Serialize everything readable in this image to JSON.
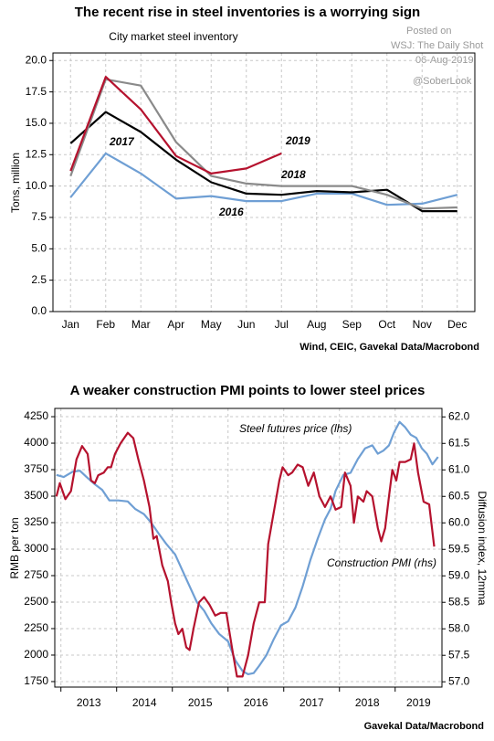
{
  "chart_data": [
    {
      "type": "line",
      "title": "The recent rise in steel inventories is a worrying sign",
      "subtitle": "City market steel inventory",
      "ylabel": "Tons, million",
      "source": "Wind, CEIC, Gavekal Data/Macrobond",
      "categories": [
        "Jan",
        "Feb",
        "Mar",
        "Apr",
        "May",
        "Jun",
        "Jul",
        "Aug",
        "Sep",
        "Oct",
        "Nov",
        "Dec"
      ],
      "ylim": [
        0,
        20.6
      ],
      "yticks": [
        {
          "value": 0,
          "label": "0.0"
        },
        2.5,
        {
          "value": 5,
          "label": "5.0"
        },
        7.5,
        {
          "value": 10,
          "label": "10.0"
        },
        12.5,
        {
          "value": 15,
          "label": "15.0"
        },
        17.5,
        {
          "value": 20,
          "label": "20.0"
        }
      ],
      "grid": true,
      "series": [
        {
          "name": "2016",
          "color": "#6f9fd4",
          "values": [
            9.1,
            12.6,
            11.0,
            9.0,
            9.2,
            8.8,
            8.8,
            9.4,
            9.4,
            8.5,
            8.6,
            9.3
          ]
        },
        {
          "name": "2017",
          "color": "#000000",
          "values": [
            13.4,
            15.9,
            14.3,
            12.1,
            10.3,
            9.4,
            9.3,
            9.6,
            9.5,
            9.7,
            8.0,
            8.0
          ]
        },
        {
          "name": "2018",
          "color": "#8a8a8a",
          "values": [
            10.8,
            18.5,
            18.0,
            13.5,
            10.8,
            10.2,
            10.0,
            10.0,
            10.0,
            9.3,
            8.2,
            8.3
          ]
        },
        {
          "name": "2019",
          "color": "#b5122e",
          "values": [
            11.2,
            18.7,
            16.1,
            12.4,
            11.0,
            11.4,
            12.6,
            null,
            null,
            null,
            null,
            null
          ]
        }
      ]
    },
    {
      "type": "line",
      "title": "A weaker construction PMI points to lower steel prices",
      "ylabel": "RMB per ton",
      "y2label": "Diffusion index, 12mma",
      "source": "Gavekal Data/Macrobond",
      "xlim": [
        2012.89,
        2019.84
      ],
      "xticks": [
        2013,
        2014,
        2015,
        2016,
        2017,
        2018,
        2019
      ],
      "ylim": [
        1698,
        4328
      ],
      "yticks": [
        1750,
        2000,
        2250,
        2500,
        2750,
        3000,
        3250,
        3500,
        3750,
        4000,
        4250
      ],
      "y2lim": [
        56.9,
        62.16
      ],
      "y2ticks": [
        {
          "value": 57,
          "label": "57.0"
        },
        57.5,
        {
          "value": 58,
          "label": "58.0"
        },
        58.5,
        {
          "value": 59,
          "label": "59.0"
        },
        59.5,
        {
          "value": 60,
          "label": "60.0"
        },
        60.5,
        {
          "value": 61,
          "label": "61.0"
        },
        61.5,
        {
          "value": 62,
          "label": "62.0"
        }
      ],
      "grid": true,
      "series": [
        {
          "name": "Steel futures price (lhs)",
          "color": "#6f9fd4",
          "x": [
            2012.92,
            2013.05,
            2013.21,
            2013.34,
            2013.46,
            2013.59,
            2013.74,
            2013.87,
            2014.03,
            2014.2,
            2014.33,
            2014.49,
            2014.62,
            2014.75,
            2014.89,
            2015.05,
            2015.18,
            2015.31,
            2015.44,
            2015.57,
            2015.7,
            2015.84,
            2016.0,
            2016.13,
            2016.26,
            2016.36,
            2016.46,
            2016.56,
            2016.69,
            2016.82,
            2016.95,
            2017.08,
            2017.21,
            2017.34,
            2017.48,
            2017.61,
            2017.74,
            2017.84,
            2017.93,
            2018.07,
            2018.2,
            2018.33,
            2018.46,
            2018.59,
            2018.69,
            2018.79,
            2018.89,
            2018.98,
            2019.08,
            2019.18,
            2019.28,
            2019.38,
            2019.48,
            2019.57,
            2019.67,
            2019.77
          ],
          "values": [
            3700,
            3680,
            3730,
            3740,
            3680,
            3620,
            3560,
            3460,
            3460,
            3450,
            3380,
            3330,
            3250,
            3150,
            3050,
            2950,
            2800,
            2650,
            2500,
            2420,
            2300,
            2200,
            2130,
            1950,
            1850,
            1820,
            1830,
            1900,
            2000,
            2150,
            2280,
            2320,
            2450,
            2650,
            2900,
            3100,
            3280,
            3380,
            3550,
            3700,
            3720,
            3850,
            3950,
            3980,
            3900,
            3930,
            3980,
            4100,
            4200,
            4150,
            4080,
            4050,
            3950,
            3900,
            3800,
            3870
          ]
        },
        {
          "name": "Construction PMI (rhs)",
          "color": "#b5122e",
          "axis": "y2",
          "x": [
            2012.92,
            2012.98,
            2013.08,
            2013.18,
            2013.28,
            2013.38,
            2013.48,
            2013.54,
            2013.61,
            2013.67,
            2013.77,
            2013.84,
            2013.9,
            2013.97,
            2014.07,
            2014.2,
            2014.3,
            2014.39,
            2014.49,
            2014.59,
            2014.66,
            2014.72,
            2014.82,
            2014.92,
            2014.98,
            2015.05,
            2015.11,
            2015.18,
            2015.25,
            2015.31,
            2015.38,
            2015.48,
            2015.57,
            2015.67,
            2015.77,
            2015.87,
            2015.97,
            2016.07,
            2016.16,
            2016.26,
            2016.36,
            2016.46,
            2016.56,
            2016.66,
            2016.72,
            2016.82,
            2016.92,
            2016.98,
            2017.08,
            2017.15,
            2017.25,
            2017.34,
            2017.44,
            2017.54,
            2017.64,
            2017.74,
            2017.84,
            2017.93,
            2018.03,
            2018.1,
            2018.2,
            2018.26,
            2018.33,
            2018.43,
            2018.49,
            2018.59,
            2018.69,
            2018.75,
            2018.82,
            2018.89,
            2018.95,
            2019.02,
            2019.08,
            2019.18,
            2019.28,
            2019.34,
            2019.41,
            2019.51,
            2019.61,
            2019.7
          ],
          "values": [
            60.5,
            60.75,
            60.45,
            60.6,
            61.2,
            61.45,
            61.3,
            60.8,
            60.75,
            60.9,
            60.95,
            61.05,
            61.05,
            61.3,
            61.5,
            61.7,
            61.6,
            61.2,
            60.8,
            60.3,
            59.7,
            59.75,
            59.2,
            58.9,
            58.5,
            58.1,
            57.9,
            58.0,
            57.65,
            57.6,
            58.0,
            58.5,
            58.6,
            58.45,
            58.25,
            58.3,
            58.3,
            57.65,
            57.1,
            57.1,
            57.5,
            58.1,
            58.5,
            58.5,
            59.6,
            60.2,
            60.8,
            61.05,
            60.9,
            60.95,
            61.1,
            61.05,
            60.7,
            60.95,
            60.5,
            60.3,
            60.5,
            60.25,
            60.3,
            60.95,
            60.7,
            60.0,
            60.5,
            60.4,
            60.6,
            60.5,
            59.9,
            59.65,
            59.9,
            60.5,
            61.0,
            60.8,
            61.15,
            61.15,
            61.2,
            61.5,
            60.95,
            60.4,
            60.35,
            59.55
          ]
        }
      ]
    }
  ],
  "watermark": {
    "posted": "Posted on",
    "site": "WSJ: The Daily Shot",
    "date": "06-Aug-2019",
    "handle": "@SoberLook"
  }
}
